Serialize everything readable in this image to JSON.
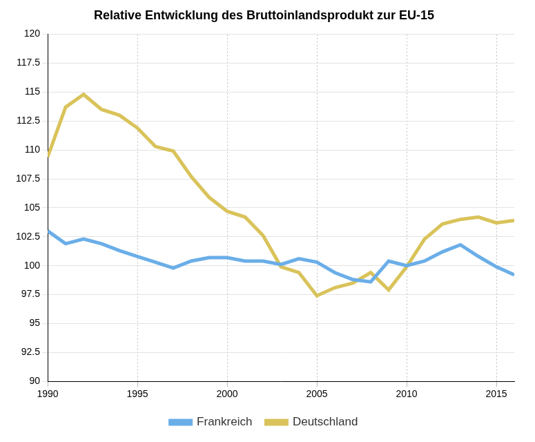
{
  "chart_data": {
    "type": "line",
    "title": "Relative Entwicklung des Bruttoinlandsprodukt zur EU-15",
    "x": [
      1990,
      1991,
      1992,
      1993,
      1994,
      1995,
      1996,
      1997,
      1998,
      1999,
      2000,
      2001,
      2002,
      2003,
      2004,
      2005,
      2006,
      2007,
      2008,
      2009,
      2010,
      2011,
      2012,
      2013,
      2014,
      2015,
      2016
    ],
    "series": [
      {
        "name": "Frankreich",
        "color": "#6aaee8",
        "values": [
          103.0,
          101.9,
          102.3,
          101.9,
          101.3,
          100.8,
          100.3,
          99.8,
          100.4,
          100.7,
          100.7,
          100.4,
          100.4,
          100.1,
          100.6,
          100.3,
          99.4,
          98.8,
          98.6,
          100.4,
          100.0,
          100.4,
          101.2,
          101.8,
          100.8,
          99.9,
          99.2
        ]
      },
      {
        "name": "Deutschland",
        "color": "#d9c35a",
        "values": [
          109.4,
          113.7,
          114.8,
          113.5,
          113.0,
          111.9,
          110.3,
          109.9,
          107.7,
          105.9,
          104.7,
          104.2,
          102.6,
          99.9,
          99.4,
          97.4,
          98.1,
          98.5,
          99.4,
          97.9,
          99.9,
          102.3,
          103.6,
          104.0,
          104.2,
          103.7,
          103.9
        ]
      }
    ],
    "xlim": [
      1990,
      2016
    ],
    "xticks": [
      1990,
      1995,
      2000,
      2005,
      2010,
      2015
    ],
    "ylim": [
      90,
      120
    ],
    "yticks": [
      90,
      92.5,
      95,
      97.5,
      100,
      102.5,
      105,
      107.5,
      110,
      112.5,
      115,
      117.5,
      120
    ],
    "grid": true,
    "legend": "bottom"
  }
}
